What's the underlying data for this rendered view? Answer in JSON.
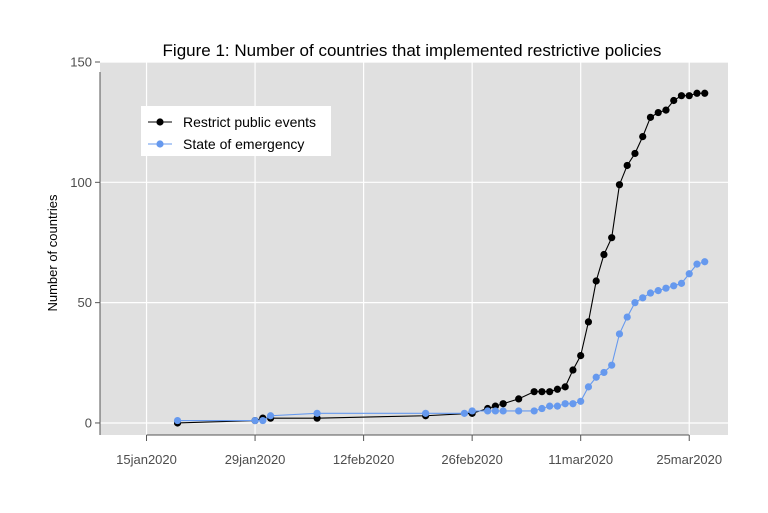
{
  "chart_data": {
    "type": "line",
    "title": "Figure 1: Number of countries that implemented restrictive policies",
    "xlabel": "",
    "ylabel": "Number of countries",
    "x_type": "date",
    "xlim": [
      "2020-01-09",
      "2020-03-30"
    ],
    "ylim": [
      -5,
      150
    ],
    "x_ticks": [
      {
        "date": "2020-01-15",
        "label": "15jan2020"
      },
      {
        "date": "2020-01-29",
        "label": "29jan2020"
      },
      {
        "date": "2020-02-12",
        "label": "12feb2020"
      },
      {
        "date": "2020-02-26",
        "label": "26feb2020"
      },
      {
        "date": "2020-03-11",
        "label": "11mar2020"
      },
      {
        "date": "2020-03-25",
        "label": "25mar2020"
      }
    ],
    "y_ticks": [
      0,
      50,
      100,
      150
    ],
    "grid": true,
    "legend_position": "top-left",
    "series": [
      {
        "name": "Restrict public events",
        "color": "#000000",
        "points": [
          [
            "2020-01-19",
            0
          ],
          [
            "2020-01-29",
            1
          ],
          [
            "2020-01-30",
            2
          ],
          [
            "2020-01-31",
            2
          ],
          [
            "2020-02-06",
            2
          ],
          [
            "2020-02-20",
            3
          ],
          [
            "2020-02-26",
            4
          ],
          [
            "2020-02-28",
            6
          ],
          [
            "2020-02-29",
            7
          ],
          [
            "2020-03-01",
            8
          ],
          [
            "2020-03-03",
            10
          ],
          [
            "2020-03-05",
            13
          ],
          [
            "2020-03-06",
            13
          ],
          [
            "2020-03-07",
            13
          ],
          [
            "2020-03-08",
            14
          ],
          [
            "2020-03-09",
            15
          ],
          [
            "2020-03-10",
            22
          ],
          [
            "2020-03-11",
            28
          ],
          [
            "2020-03-12",
            42
          ],
          [
            "2020-03-13",
            59
          ],
          [
            "2020-03-14",
            70
          ],
          [
            "2020-03-15",
            77
          ],
          [
            "2020-03-16",
            99
          ],
          [
            "2020-03-17",
            107
          ],
          [
            "2020-03-18",
            112
          ],
          [
            "2020-03-19",
            119
          ],
          [
            "2020-03-20",
            127
          ],
          [
            "2020-03-21",
            129
          ],
          [
            "2020-03-22",
            130
          ],
          [
            "2020-03-23",
            134
          ],
          [
            "2020-03-24",
            136
          ],
          [
            "2020-03-25",
            136
          ],
          [
            "2020-03-26",
            137
          ],
          [
            "2020-03-27",
            137
          ]
        ]
      },
      {
        "name": "State of emergency",
        "color": "#6699ee",
        "points": [
          [
            "2020-01-19",
            1
          ],
          [
            "2020-01-29",
            1
          ],
          [
            "2020-01-30",
            1
          ],
          [
            "2020-01-31",
            3
          ],
          [
            "2020-02-06",
            4
          ],
          [
            "2020-02-20",
            4
          ],
          [
            "2020-02-25",
            4
          ],
          [
            "2020-02-26",
            5
          ],
          [
            "2020-02-28",
            5
          ],
          [
            "2020-02-29",
            5
          ],
          [
            "2020-03-01",
            5
          ],
          [
            "2020-03-03",
            5
          ],
          [
            "2020-03-05",
            5
          ],
          [
            "2020-03-06",
            6
          ],
          [
            "2020-03-07",
            7
          ],
          [
            "2020-03-08",
            7
          ],
          [
            "2020-03-09",
            8
          ],
          [
            "2020-03-10",
            8
          ],
          [
            "2020-03-11",
            9
          ],
          [
            "2020-03-12",
            15
          ],
          [
            "2020-03-13",
            19
          ],
          [
            "2020-03-14",
            21
          ],
          [
            "2020-03-15",
            24
          ],
          [
            "2020-03-16",
            37
          ],
          [
            "2020-03-17",
            44
          ],
          [
            "2020-03-18",
            50
          ],
          [
            "2020-03-19",
            52
          ],
          [
            "2020-03-20",
            54
          ],
          [
            "2020-03-21",
            55
          ],
          [
            "2020-03-22",
            56
          ],
          [
            "2020-03-23",
            57
          ],
          [
            "2020-03-24",
            58
          ],
          [
            "2020-03-25",
            62
          ],
          [
            "2020-03-26",
            66
          ],
          [
            "2020-03-27",
            67
          ]
        ]
      }
    ]
  }
}
